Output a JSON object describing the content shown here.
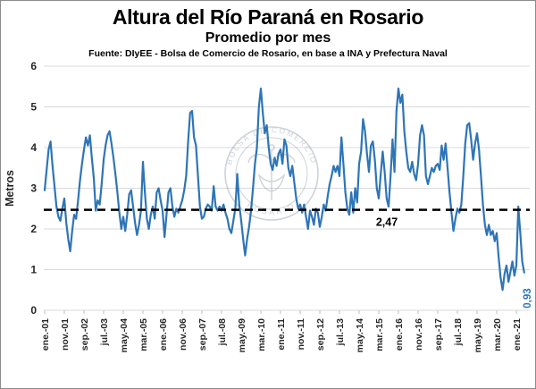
{
  "title": "Altura del Río Paraná en Rosario",
  "subtitle": "Promedio por mes",
  "source": "Fuente: DIyEE - Bolsa de Comercio de Rosario, en base a INA y Prefectura Naval",
  "watermark": {
    "top_text": "BOLSA DE COMERCIO",
    "bottom_text": "ROSARIO"
  },
  "colors": {
    "line": "#2E75B6",
    "average_line": "#000000",
    "grid": "#D9D9D9",
    "tick_text": "#262626",
    "end_label": "#2E75B6",
    "watermark": "#8A94A6"
  },
  "chart_data": {
    "type": "line",
    "title": "Altura del Río Paraná en Rosario - Promedio por mes",
    "xlabel": "",
    "ylabel": "Metros",
    "ylim": [
      0,
      6
    ],
    "yticks": [
      0,
      1,
      2,
      3,
      4,
      5,
      6
    ],
    "grid": "horizontal",
    "legend": "none",
    "x_start": "ene.-01",
    "x_end": "may.-21",
    "x_frequency": "monthly",
    "x_tick_every_months": 10,
    "x_tick_labels": [
      "ene.-01",
      "nov.-01",
      "sep.-02",
      "jul.-03",
      "may.-04",
      "mar.-05",
      "ene.-06",
      "nov.-06",
      "sep.-07",
      "jul.-08",
      "may.-09",
      "mar.-10",
      "ene.-11",
      "nov.-11",
      "sep.-12",
      "jul.-13",
      "may.-14",
      "mar.-15",
      "ene.-16",
      "nov.-16",
      "sep.-17",
      "jul.-18",
      "may.-19",
      "mar.-20",
      "ene.-21"
    ],
    "average_line": {
      "value": 2.47,
      "label": "2,47",
      "style": "dashed"
    },
    "end_point_label": {
      "value": 0.93,
      "label": "0,93"
    },
    "values": [
      2.95,
      3.45,
      3.95,
      4.15,
      3.55,
      3.05,
      2.55,
      2.3,
      2.2,
      2.5,
      2.75,
      2.15,
      1.75,
      1.45,
      1.95,
      2.35,
      2.25,
      2.7,
      3.2,
      3.6,
      3.95,
      4.25,
      4.05,
      4.3,
      3.75,
      3.25,
      2.45,
      2.7,
      2.6,
      3.1,
      3.7,
      4.05,
      4.3,
      4.4,
      4.1,
      3.75,
      3.35,
      2.9,
      2.4,
      2.0,
      2.3,
      1.95,
      2.35,
      2.85,
      2.95,
      2.55,
      2.15,
      1.85,
      2.1,
      2.45,
      3.65,
      2.9,
      2.25,
      2.0,
      2.35,
      2.55,
      2.25,
      2.9,
      3.0,
      2.7,
      2.45,
      1.8,
      2.35,
      2.9,
      3.0,
      2.55,
      2.3,
      2.5,
      2.4,
      2.55,
      2.7,
      2.95,
      3.3,
      4.15,
      4.85,
      4.9,
      4.25,
      4.05,
      3.3,
      2.55,
      2.25,
      2.3,
      2.5,
      2.6,
      2.55,
      2.45,
      3.05,
      2.55,
      2.45,
      2.55,
      2.45,
      2.6,
      2.4,
      2.25,
      2.0,
      1.9,
      2.2,
      2.5,
      3.35,
      2.6,
      2.2,
      1.75,
      1.35,
      1.75,
      2.05,
      2.45,
      3.0,
      3.6,
      4.0,
      5.0,
      5.45,
      4.85,
      4.35,
      4.55,
      4.0,
      3.6,
      3.45,
      3.75,
      3.55,
      3.85,
      3.95,
      3.6,
      4.2,
      4.05,
      3.5,
      3.3,
      3.55,
      3.15,
      2.75,
      2.5,
      2.6,
      2.4,
      2.6,
      2.3,
      2.0,
      2.45,
      2.3,
      2.1,
      2.5,
      2.4,
      2.05,
      2.3,
      2.6,
      2.45,
      2.8,
      3.1,
      3.3,
      3.55,
      3.4,
      3.55,
      3.3,
      4.25,
      3.6,
      2.9,
      2.5,
      2.35,
      2.9,
      2.4,
      3.0,
      2.65,
      3.6,
      3.9,
      4.7,
      4.4,
      3.85,
      3.4,
      4.05,
      4.15,
      3.7,
      3.0,
      2.75,
      3.35,
      3.9,
      3.4,
      2.75,
      2.55,
      3.3,
      4.2,
      3.4,
      4.9,
      5.45,
      5.1,
      5.3,
      4.4,
      3.9,
      3.5,
      3.4,
      3.65,
      3.35,
      3.2,
      3.6,
      4.3,
      4.55,
      4.3,
      3.3,
      3.1,
      3.3,
      3.5,
      3.4,
      3.55,
      3.6,
      3.45,
      4.05,
      3.7,
      4.1,
      3.5,
      2.9,
      2.4,
      1.95,
      2.25,
      2.5,
      2.4,
      2.6,
      3.3,
      4.1,
      4.55,
      4.6,
      4.2,
      3.7,
      4.1,
      4.35,
      3.95,
      3.3,
      2.6,
      2.1,
      1.85,
      2.1,
      1.85,
      1.95,
      1.7,
      1.9,
      1.3,
      0.8,
      0.5,
      0.9,
      1.1,
      0.7,
      0.95,
      1.2,
      0.85,
      1.1,
      2.55,
      1.9,
      1.2,
      0.93
    ]
  }
}
